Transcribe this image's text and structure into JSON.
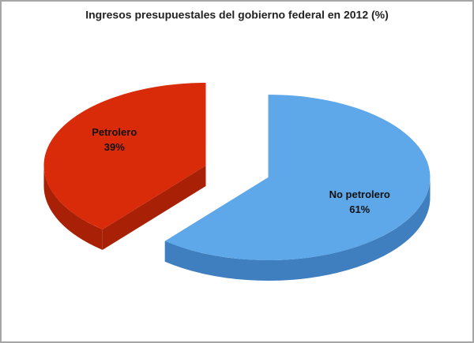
{
  "chart_data": {
    "type": "pie",
    "title": "Ingresos presupuestales del gobierno federal en 2012 (%)",
    "categories": [
      "No petrolero",
      "Petrolero"
    ],
    "values": [
      61,
      39
    ],
    "value_labels": [
      "61%",
      "39%"
    ],
    "colors": [
      "#5ea7e8",
      "#d92b0a"
    ],
    "side_colors": [
      "#3f7fbf",
      "#a82006"
    ]
  }
}
